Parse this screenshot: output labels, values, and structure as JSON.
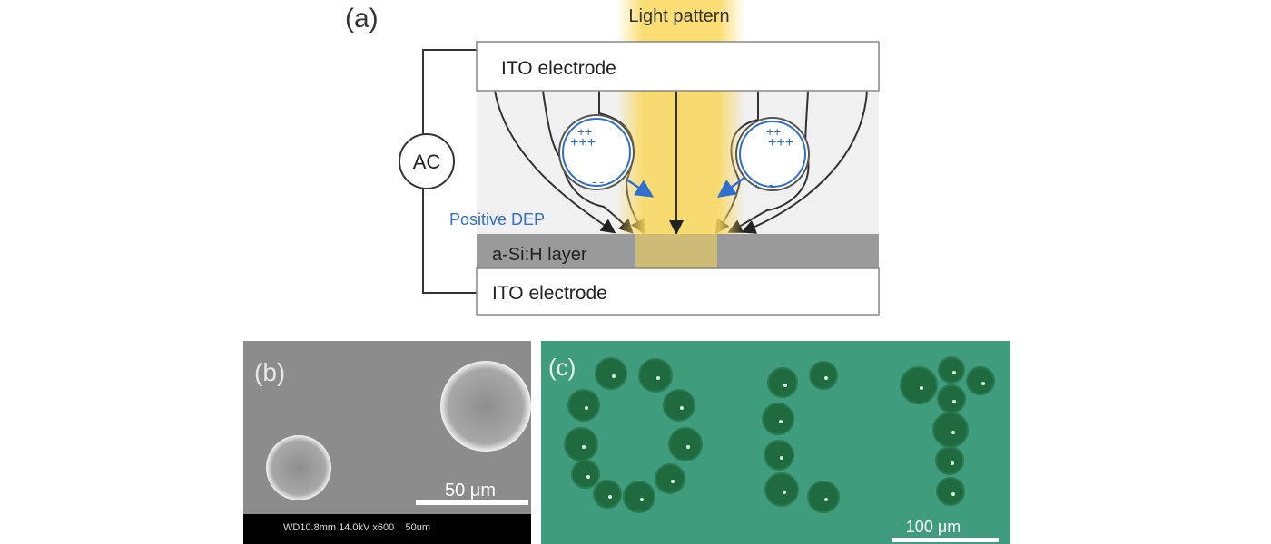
{
  "panel_a": {
    "label": "(a)",
    "light_label": "Light  pattern",
    "top_electrode": "ITO electrode",
    "bottom_electrode": "ITO electrode",
    "layer": "a-Si:H layer",
    "source": "AC",
    "dep_label": "Positive DEP",
    "colors": {
      "light": "#f9d75a",
      "dep": "#2f6fd0",
      "layer": "#9a9a9a",
      "medium": "#f0f0f0"
    }
  },
  "panel_b": {
    "label": "(b)",
    "scale_label": "50 μm",
    "info_bar": "WD10.8mm 14.0kV x600    50um"
  },
  "panel_c": {
    "label": "(c)",
    "scale_label": "100 μm",
    "colors": {
      "background": "#3f9c7c",
      "particle": "#1f6a3f"
    }
  }
}
